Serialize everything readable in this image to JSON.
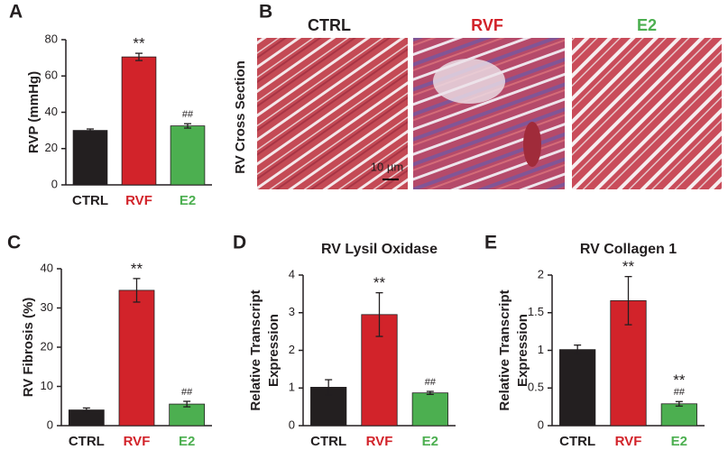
{
  "chart_data": [
    {
      "type": "bar",
      "panel": "A",
      "ylabel": [
        "RVP (mmHg)"
      ],
      "categories": [
        "CTRL",
        "RVF",
        "E2"
      ],
      "values": [
        30,
        70.5,
        32.5
      ],
      "errors": [
        0.8,
        2,
        1.2
      ],
      "colors": [
        "#231f20",
        "#d2232a",
        "#4caf50"
      ],
      "annotations": [
        null,
        [
          "**"
        ],
        [
          "##"
        ]
      ],
      "ylim": [
        0,
        80
      ],
      "yticks": [
        0,
        20,
        40,
        60,
        80
      ]
    },
    {
      "type": "bar",
      "panel": "C",
      "ylabel": [
        "RV Fibrosis (%)"
      ],
      "categories": [
        "CTRL",
        "RVF",
        "E2"
      ],
      "values": [
        4,
        34.5,
        5.5
      ],
      "errors": [
        0.5,
        3,
        0.7
      ],
      "colors": [
        "#231f20",
        "#d2232a",
        "#4caf50"
      ],
      "annotations": [
        null,
        [
          "**"
        ],
        [
          "##"
        ]
      ],
      "ylim": [
        0,
        40
      ],
      "yticks": [
        0,
        10,
        20,
        30,
        40
      ]
    },
    {
      "type": "bar",
      "panel": "D",
      "title": "RV Lysil Oxidase",
      "ylabel": [
        "Relative Transcript",
        "Expression"
      ],
      "categories": [
        "CTRL",
        "RVF",
        "E2"
      ],
      "values": [
        1.02,
        2.95,
        0.87
      ],
      "errors": [
        0.2,
        0.58,
        0.04
      ],
      "colors": [
        "#231f20",
        "#d2232a",
        "#4caf50"
      ],
      "annotations": [
        null,
        [
          "**"
        ],
        [
          "##"
        ]
      ],
      "ylim": [
        0,
        4
      ],
      "yticks": [
        0,
        1,
        2,
        3,
        4
      ]
    },
    {
      "type": "bar",
      "panel": "E",
      "title": "RV Collagen 1",
      "ylabel": [
        "Relative Transcript",
        "Expression"
      ],
      "categories": [
        "CTRL",
        "RVF",
        "E2"
      ],
      "values": [
        1.01,
        1.66,
        0.29
      ],
      "errors": [
        0.06,
        0.32,
        0.03
      ],
      "colors": [
        "#231f20",
        "#d2232a",
        "#4caf50"
      ],
      "annotations": [
        null,
        [
          "**"
        ],
        [
          "**",
          "##"
        ]
      ],
      "ylim": [
        0,
        2
      ],
      "yticks": [
        0,
        0.5,
        1,
        1.5,
        2
      ]
    }
  ],
  "panel_b": {
    "panel": "B",
    "ylabel": "RV Cross Section",
    "titles": [
      "CTRL",
      "RVF",
      "E2"
    ],
    "scale_bar": "10 µm"
  }
}
